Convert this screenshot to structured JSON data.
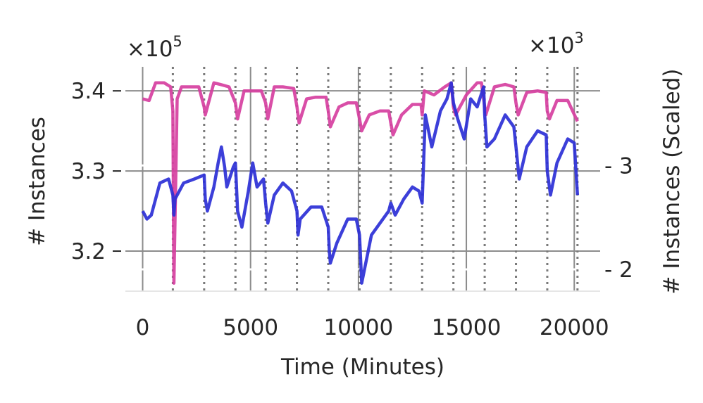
{
  "chart_data": {
    "type": "line",
    "xlabel": "Time (Minutes)",
    "ylabel_left": "# Instances",
    "ylabel_right": "# Instances (Scaled)",
    "x_ticks": [
      "0",
      "5000",
      "10000",
      "15000",
      "20000"
    ],
    "x_tick_values": [
      0,
      5000,
      10000,
      15000,
      20000
    ],
    "xlim": [
      -800,
      21200
    ],
    "y_left": {
      "multiplier_label": "×10",
      "multiplier_exp": "5",
      "ticks": [
        "3.2",
        "3.3",
        "3.4"
      ],
      "tick_values": [
        3.2,
        3.3,
        3.4
      ],
      "lim": [
        3.15,
        3.43
      ]
    },
    "y_right": {
      "multiplier_label": "×10",
      "multiplier_exp": "3",
      "ticks": [
        "- 2",
        "- 3"
      ],
      "tick_values": [
        2,
        3
      ],
      "lim": [
        1.79,
        3.95
      ]
    },
    "vertical_lines": [
      1400,
      2850,
      4300,
      5700,
      7150,
      8600,
      10050,
      11500,
      12950,
      14400,
      15850,
      17300,
      18750,
      20150
    ],
    "series": [
      {
        "axis": "left",
        "color": "#d63f9f",
        "x": [
          0,
          300,
          600,
          1000,
          1300,
          1400,
          1450,
          1600,
          1800,
          2200,
          2600,
          2850,
          2900,
          3300,
          3600,
          4000,
          4300,
          4400,
          4700,
          5100,
          5500,
          5700,
          5800,
          6100,
          6500,
          7000,
          7150,
          7250,
          7600,
          8000,
          8500,
          8600,
          8700,
          9100,
          9500,
          9900,
          10050,
          10150,
          10500,
          11000,
          11400,
          11500,
          11600,
          12000,
          12500,
          12900,
          12950,
          13050,
          13500,
          14000,
          14300,
          14400,
          14500,
          15000,
          15500,
          15700,
          15850,
          15900,
          16300,
          16800,
          17200,
          17300,
          17400,
          17800,
          18300,
          18700,
          18750,
          18850,
          19200,
          19700,
          20150
        ],
        "values": [
          3.39,
          3.388,
          3.41,
          3.41,
          3.405,
          3.375,
          3.16,
          3.39,
          3.405,
          3.405,
          3.405,
          3.38,
          3.37,
          3.41,
          3.408,
          3.405,
          3.385,
          3.365,
          3.4,
          3.4,
          3.4,
          3.385,
          3.365,
          3.405,
          3.405,
          3.403,
          3.38,
          3.36,
          3.39,
          3.392,
          3.392,
          3.375,
          3.355,
          3.38,
          3.385,
          3.385,
          3.365,
          3.35,
          3.37,
          3.375,
          3.375,
          3.36,
          3.345,
          3.37,
          3.383,
          3.383,
          3.37,
          3.4,
          3.395,
          3.405,
          3.41,
          3.38,
          3.37,
          3.395,
          3.41,
          3.41,
          3.38,
          3.37,
          3.405,
          3.408,
          3.405,
          3.385,
          3.37,
          3.398,
          3.4,
          3.398,
          3.375,
          3.365,
          3.388,
          3.388,
          3.362
        ]
      },
      {
        "axis": "left",
        "color": "#2b2fd6",
        "x": [
          0,
          200,
          400,
          800,
          1200,
          1400,
          1450,
          1500,
          1900,
          2400,
          2850,
          2900,
          3000,
          3300,
          3500,
          3650,
          3800,
          3900,
          4200,
          4300,
          4400,
          4600,
          4900,
          5100,
          5300,
          5600,
          5700,
          5800,
          6100,
          6500,
          6900,
          7150,
          7200,
          7300,
          7800,
          8300,
          8600,
          8650,
          8700,
          9000,
          9500,
          9900,
          10050,
          10150,
          10300,
          10600,
          11000,
          11400,
          11500,
          11700,
          12100,
          12500,
          12800,
          12950,
          13100,
          13400,
          13800,
          14100,
          14300,
          14400,
          14600,
          14900,
          15200,
          15500,
          15800,
          15850,
          15950,
          16300,
          16800,
          17200,
          17300,
          17450,
          17800,
          18300,
          18700,
          18750,
          18900,
          19200,
          19700,
          20000,
          20150
        ],
        "values": [
          3.25,
          3.24,
          3.245,
          3.285,
          3.29,
          3.27,
          3.245,
          3.265,
          3.285,
          3.29,
          3.295,
          3.265,
          3.25,
          3.28,
          3.31,
          3.33,
          3.305,
          3.28,
          3.305,
          3.31,
          3.25,
          3.23,
          3.275,
          3.31,
          3.28,
          3.29,
          3.26,
          3.235,
          3.27,
          3.285,
          3.275,
          3.25,
          3.22,
          3.24,
          3.255,
          3.255,
          3.23,
          3.2,
          3.185,
          3.21,
          3.24,
          3.24,
          3.22,
          3.16,
          3.18,
          3.22,
          3.235,
          3.25,
          3.26,
          3.245,
          3.265,
          3.28,
          3.275,
          3.26,
          3.37,
          3.33,
          3.375,
          3.39,
          3.41,
          3.385,
          3.365,
          3.34,
          3.39,
          3.38,
          3.405,
          3.37,
          3.33,
          3.34,
          3.37,
          3.355,
          3.33,
          3.29,
          3.33,
          3.35,
          3.345,
          3.3,
          3.27,
          3.31,
          3.34,
          3.335,
          3.27
        ]
      }
    ]
  }
}
